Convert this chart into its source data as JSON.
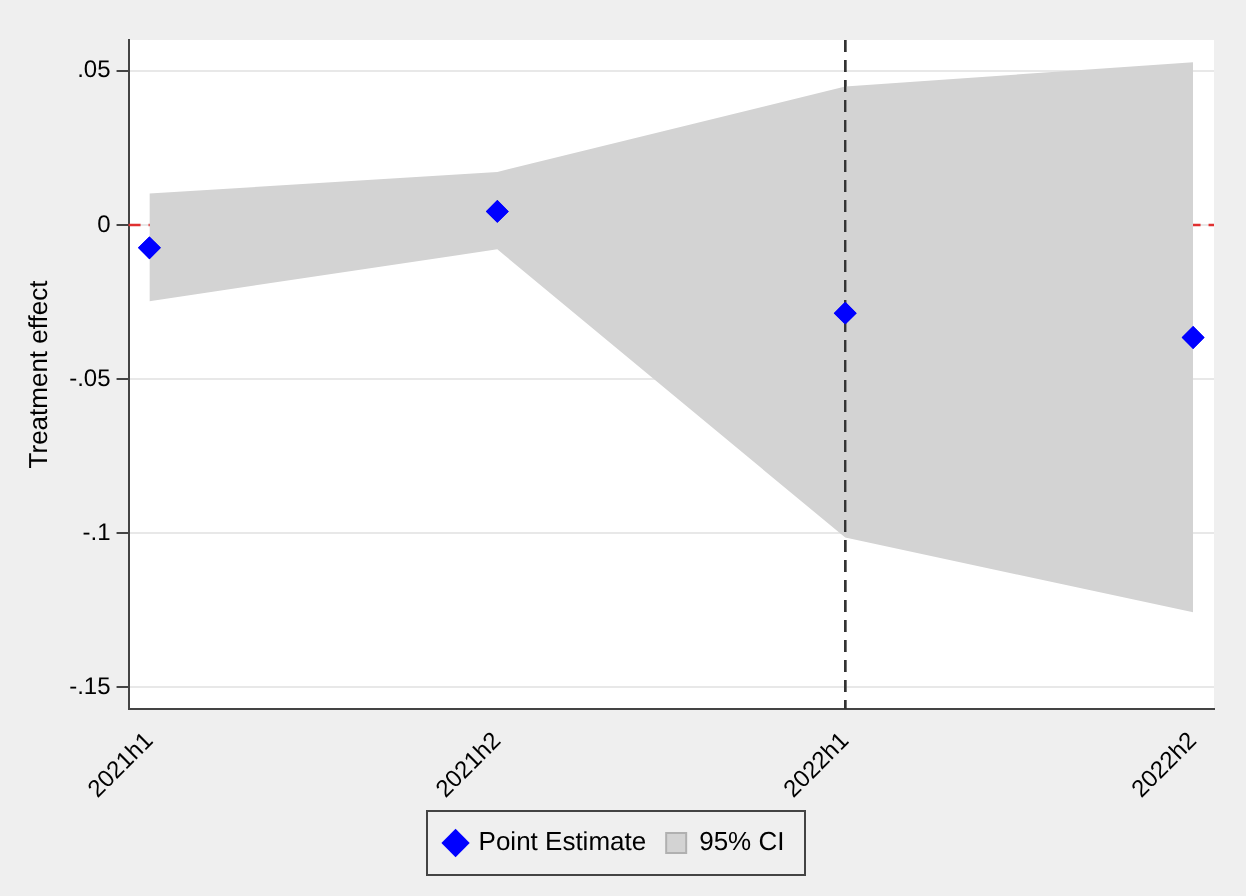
{
  "chart_data": {
    "type": "scatter",
    "ylabel": "Treatment effect",
    "categories": [
      "2021h1",
      "2021h2",
      "2022h1",
      "2022h2"
    ],
    "series": [
      {
        "name": "Point Estimate",
        "type": "scatter",
        "color": "#0000ff",
        "marker": "diamond",
        "values": [
          -0.0074,
          0.0044,
          -0.0286,
          -0.0365
        ]
      },
      {
        "name": "95% CI",
        "type": "area",
        "color": "#d3d3d3",
        "values": [
          null,
          null,
          null,
          null
        ],
        "lower": [
          -0.0247,
          -0.0079,
          -0.1014,
          -0.1256
        ],
        "upper": [
          0.0102,
          0.0172,
          0.0449,
          0.0528
        ]
      }
    ],
    "ylim": [
      -0.157,
      0.06
    ],
    "yticks": [
      {
        "value": 0.05,
        "label": ".05"
      },
      0,
      {
        "value": -0.05,
        "label": "-.05"
      },
      {
        "value": -0.1,
        "label": "-.1"
      },
      {
        "value": -0.15,
        "label": "-.15"
      }
    ],
    "grid": "y",
    "legend": "bottom",
    "ref_lines": [
      {
        "axis": "y",
        "value": 0,
        "color": "#e03030",
        "line_style": "dashed"
      },
      {
        "axis": "x",
        "value": "2022h1",
        "color": "#333333",
        "line_style": "dashed"
      }
    ]
  }
}
